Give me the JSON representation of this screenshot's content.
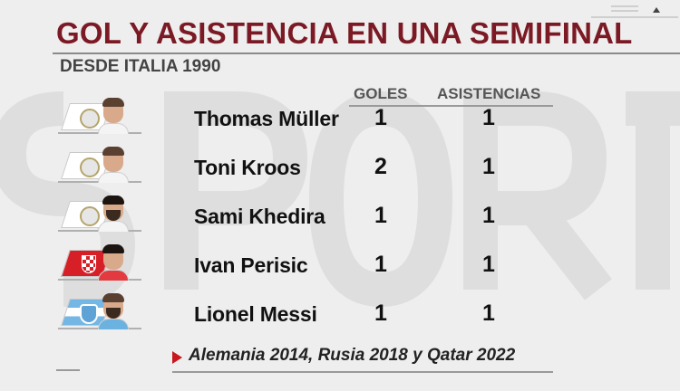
{
  "header": {
    "title": "GOL Y ASISTENCIA EN UNA SEMIFINAL",
    "subtitle": "DESDE ITALIA 1990"
  },
  "columns": {
    "goals": "GOLES",
    "assists": "ASISTENCIAS"
  },
  "players": [
    {
      "name": "Thomas Müller",
      "goals": "1",
      "assists": "1",
      "team_flag": "germany-flag-icon",
      "avatar": "player-photo"
    },
    {
      "name": "Toni Kroos",
      "goals": "2",
      "assists": "1",
      "team_flag": "germany-flag-icon",
      "avatar": "player-photo"
    },
    {
      "name": "Sami Khedira",
      "goals": "1",
      "assists": "1",
      "team_flag": "germany-flag-icon",
      "avatar": "player-photo"
    },
    {
      "name": "Ivan Perisic",
      "goals": "1",
      "assists": "1",
      "team_flag": "croatia-flag-icon",
      "avatar": "player-photo"
    },
    {
      "name": "Lionel Messi",
      "goals": "1",
      "assists": "1",
      "team_flag": "argentina-flag-icon",
      "avatar": "player-photo"
    }
  ],
  "footer": {
    "note": "Alemania 2014, Rusia 2018 y Qatar 2022"
  },
  "colors": {
    "title": "#7b1a25",
    "accent": "#c8181e",
    "background": "#eeeeee"
  }
}
